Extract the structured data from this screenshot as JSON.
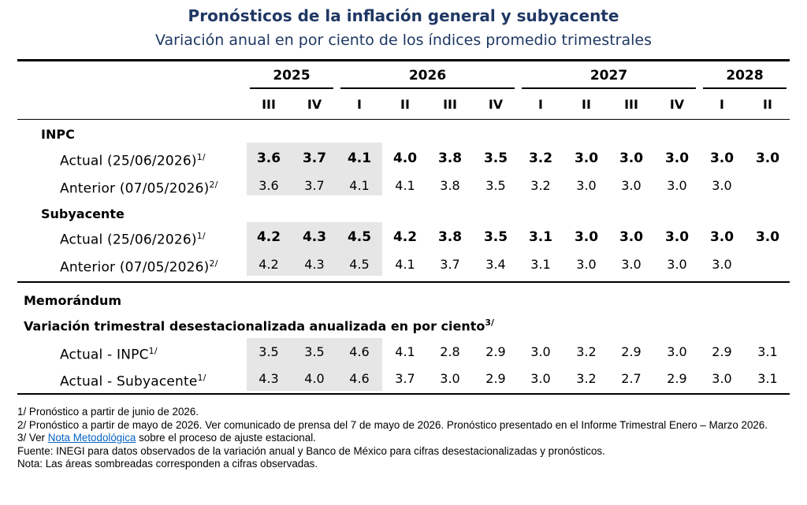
{
  "title": "Pronósticos de la inflación general y subyacente",
  "subtitle": "Variación anual en por ciento de los índices promedio trimestrales",
  "chart_data": {
    "type": "table",
    "years": [
      {
        "label": "2025",
        "span": 2
      },
      {
        "label": "2026",
        "span": 4
      },
      {
        "label": "2027",
        "span": 4
      },
      {
        "label": "2028",
        "span": 2
      }
    ],
    "quarters": [
      "III",
      "IV",
      "I",
      "II",
      "III",
      "IV",
      "I",
      "II",
      "III",
      "IV",
      "I",
      "II"
    ],
    "shaded_columns": 3,
    "sections": [
      {
        "label": "INPC",
        "rows": [
          {
            "label": "Actual (25/06/2026)",
            "note": "1/",
            "bold": true,
            "values": [
              "3.6",
              "3.7",
              "4.1",
              "4.0",
              "3.8",
              "3.5",
              "3.2",
              "3.0",
              "3.0",
              "3.0",
              "3.0",
              "3.0"
            ]
          },
          {
            "label": "Anterior (07/05/2026)",
            "note": "2/",
            "bold": false,
            "values": [
              "3.6",
              "3.7",
              "4.1",
              "4.1",
              "3.8",
              "3.5",
              "3.2",
              "3.0",
              "3.0",
              "3.0",
              "3.0",
              ""
            ]
          }
        ]
      },
      {
        "label": "Subyacente",
        "rows": [
          {
            "label": "Actual (25/06/2026)",
            "note": "1/",
            "bold": true,
            "values": [
              "4.2",
              "4.3",
              "4.5",
              "4.2",
              "3.8",
              "3.5",
              "3.1",
              "3.0",
              "3.0",
              "3.0",
              "3.0",
              "3.0"
            ]
          },
          {
            "label": "Anterior (07/05/2026)",
            "note": "2/",
            "bold": false,
            "values": [
              "4.2",
              "4.3",
              "4.5",
              "4.1",
              "3.7",
              "3.4",
              "3.1",
              "3.0",
              "3.0",
              "3.0",
              "3.0",
              ""
            ]
          }
        ]
      }
    ],
    "memorandum": {
      "label": "Memorándum",
      "sublabel": "Variación trimestral desestacionalizada anualizada en por ciento",
      "sublabel_note": "3/",
      "rows": [
        {
          "label": "Actual - INPC",
          "note": "1/",
          "bold": false,
          "values": [
            "3.5",
            "3.5",
            "4.6",
            "4.1",
            "2.8",
            "2.9",
            "3.0",
            "3.2",
            "2.9",
            "3.0",
            "2.9",
            "3.1"
          ]
        },
        {
          "label": "Actual - Subyacente",
          "note": "1/",
          "bold": false,
          "values": [
            "4.3",
            "4.0",
            "4.6",
            "3.7",
            "3.0",
            "2.9",
            "3.0",
            "3.2",
            "2.7",
            "2.9",
            "3.0",
            "3.1"
          ]
        }
      ]
    }
  },
  "notes": {
    "n1": "1/ Pronóstico a partir de junio de 2026.",
    "n2": "2/ Pronóstico a partir de mayo de 2026. Ver comunicado de prensa del 7 de mayo de 2026. Pronóstico presentado en el Informe Trimestral Enero – Marzo 2026.",
    "n3_prefix": "3/ Ver ",
    "n3_link": "Nota Metodológica",
    "n3_suffix": " sobre el proceso de ajuste estacional.",
    "fuente": "Fuente: INEGI para datos observados de la variación anual y Banco de México para cifras desestacionalizadas y pronósticos.",
    "nota": "Nota: Las áreas sombreadas corresponden a cifras observadas."
  }
}
